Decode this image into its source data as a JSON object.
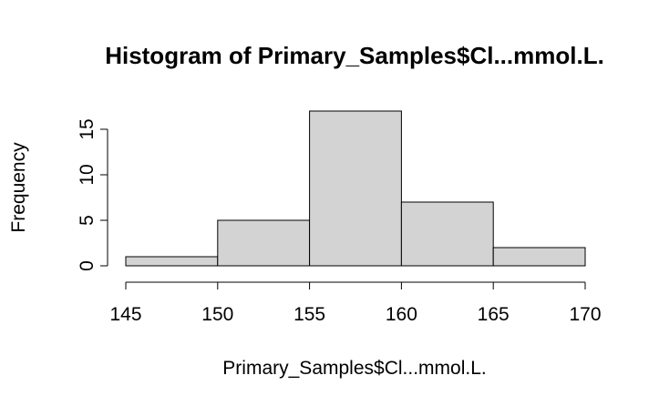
{
  "chart_data": {
    "type": "bar",
    "title": "Histogram of Primary_Samples$Cl...mmol.L.",
    "xlabel": "Primary_Samples$Cl...mmol.L.",
    "ylabel": "Frequency",
    "bins": [
      {
        "start": 145,
        "end": 150,
        "count": 1
      },
      {
        "start": 150,
        "end": 155,
        "count": 5
      },
      {
        "start": 155,
        "end": 160,
        "count": 17
      },
      {
        "start": 160,
        "end": 165,
        "count": 7
      },
      {
        "start": 165,
        "end": 170,
        "count": 2
      }
    ],
    "x_ticks": [
      "145",
      "150",
      "155",
      "160",
      "165",
      "170"
    ],
    "y_ticks": [
      "0",
      "5",
      "10",
      "15"
    ],
    "xlim": [
      145,
      170
    ],
    "ylim": [
      0,
      17
    ],
    "bar_color": "#d3d3d3",
    "grid": false
  }
}
